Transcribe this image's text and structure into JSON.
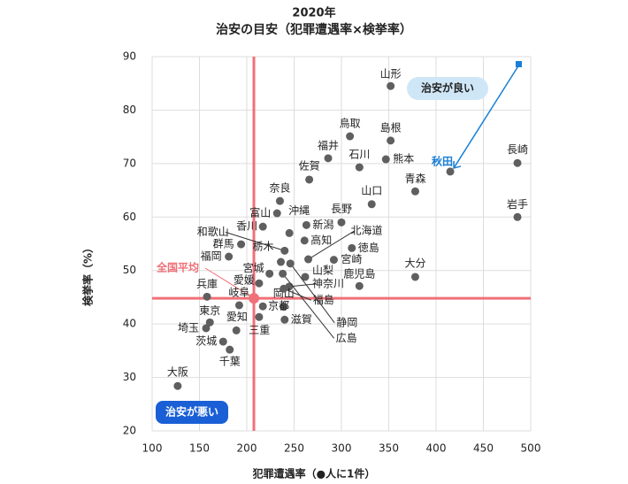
{
  "chart_data": {
    "type": "scatter",
    "title": "2020年",
    "subtitle": "治安の目安（犯罪遭遇率×検挙率）",
    "x_label": "犯罪遭遇率（●人に1件）",
    "y_label": "検挙率（%）",
    "xlim": [
      100,
      500
    ],
    "xticks": [
      100,
      150,
      200,
      250,
      300,
      350,
      400,
      450,
      500
    ],
    "ylim": [
      20,
      90
    ],
    "yticks": [
      20,
      30,
      40,
      50,
      60,
      70,
      80,
      90
    ],
    "grid": true,
    "color": "#5f5f5f",
    "average_color": "#f07078",
    "highlight_color": "#1a7fd6",
    "average": {
      "label": "全国平均",
      "x": 207.5,
      "y": 44.8
    },
    "quadrant_labels": {
      "good": "治安が良い",
      "bad": "治安が悪い"
    },
    "points": [
      {
        "label": "山形",
        "x": 352,
        "y": 84.5
      },
      {
        "label": "鳥取",
        "x": 309,
        "y": 75.1
      },
      {
        "label": "島根",
        "x": 352,
        "y": 74.3
      },
      {
        "label": "福井",
        "x": 286,
        "y": 71.0
      },
      {
        "label": "石川",
        "x": 319,
        "y": 69.3
      },
      {
        "label": "熊本",
        "x": 347,
        "y": 70.8
      },
      {
        "label": "佐賀",
        "x": 266,
        "y": 67.0
      },
      {
        "label": "長崎",
        "x": 486,
        "y": 70.1
      },
      {
        "label": "秋田",
        "x": 415,
        "y": 68.5
      },
      {
        "label": "青森",
        "x": 378,
        "y": 64.8
      },
      {
        "label": "奈良",
        "x": 235,
        "y": 63.0
      },
      {
        "label": "山口",
        "x": 332,
        "y": 62.4
      },
      {
        "label": "岩手",
        "x": 486,
        "y": 60.0
      },
      {
        "label": "富山",
        "x": 232,
        "y": 60.7
      },
      {
        "label": "沖縄",
        "x": 245,
        "y": 57.0
      },
      {
        "label": "香川",
        "x": 217,
        "y": 58.2
      },
      {
        "label": "新潟",
        "x": 263,
        "y": 58.5
      },
      {
        "label": "長野",
        "x": 300,
        "y": 59.0
      },
      {
        "label": "高知",
        "x": 261,
        "y": 55.6
      },
      {
        "label": "北海道",
        "x": 265,
        "y": 52.1
      },
      {
        "label": "徳島",
        "x": 311,
        "y": 54.2
      },
      {
        "label": "宮崎",
        "x": 292,
        "y": 52.0
      },
      {
        "label": "和歌山",
        "x": 240,
        "y": 53.7
      },
      {
        "label": "群馬",
        "x": 194,
        "y": 54.9
      },
      {
        "label": "福岡",
        "x": 181,
        "y": 52.6
      },
      {
        "label": "栃木",
        "x": 236,
        "y": 51.6
      },
      {
        "label": "宮城",
        "x": 224,
        "y": 49.4
      },
      {
        "label": "愛媛",
        "x": 213,
        "y": 47.6
      },
      {
        "label": "山梨",
        "x": 261.7,
        "y": 48.8
      },
      {
        "label": "神奈川",
        "x": 244.9,
        "y": 47.0
      },
      {
        "label": "鹿児島",
        "x": 319,
        "y": 47.1
      },
      {
        "label": "大分",
        "x": 378,
        "y": 48.8
      },
      {
        "label": "兵庫",
        "x": 158,
        "y": 45.1
      },
      {
        "label": "岐阜",
        "x": 192,
        "y": 43.5
      },
      {
        "label": "岡山",
        "x": 239,
        "y": 43.2
      },
      {
        "label": "福島",
        "x": 239,
        "y": 46.6
      },
      {
        "label": "京都",
        "x": 217,
        "y": 43.3
      },
      {
        "label": "東京",
        "x": 161,
        "y": 40.3
      },
      {
        "label": "滋賀",
        "x": 240,
        "y": 40.8
      },
      {
        "label": "愛知",
        "x": 213,
        "y": 41.3
      },
      {
        "label": "静岡",
        "x": 246,
        "y": 51.3
      },
      {
        "label": "広島",
        "x": 238,
        "y": 49.4
      },
      {
        "label": "埼玉",
        "x": 157,
        "y": 39.2
      },
      {
        "label": "三重",
        "x": 189,
        "y": 38.8
      },
      {
        "label": "茨城",
        "x": 175,
        "y": 36.7
      },
      {
        "label": "千葉",
        "x": 182,
        "y": 35.2
      },
      {
        "label": "大阪",
        "x": 127,
        "y": 28.4
      }
    ]
  }
}
